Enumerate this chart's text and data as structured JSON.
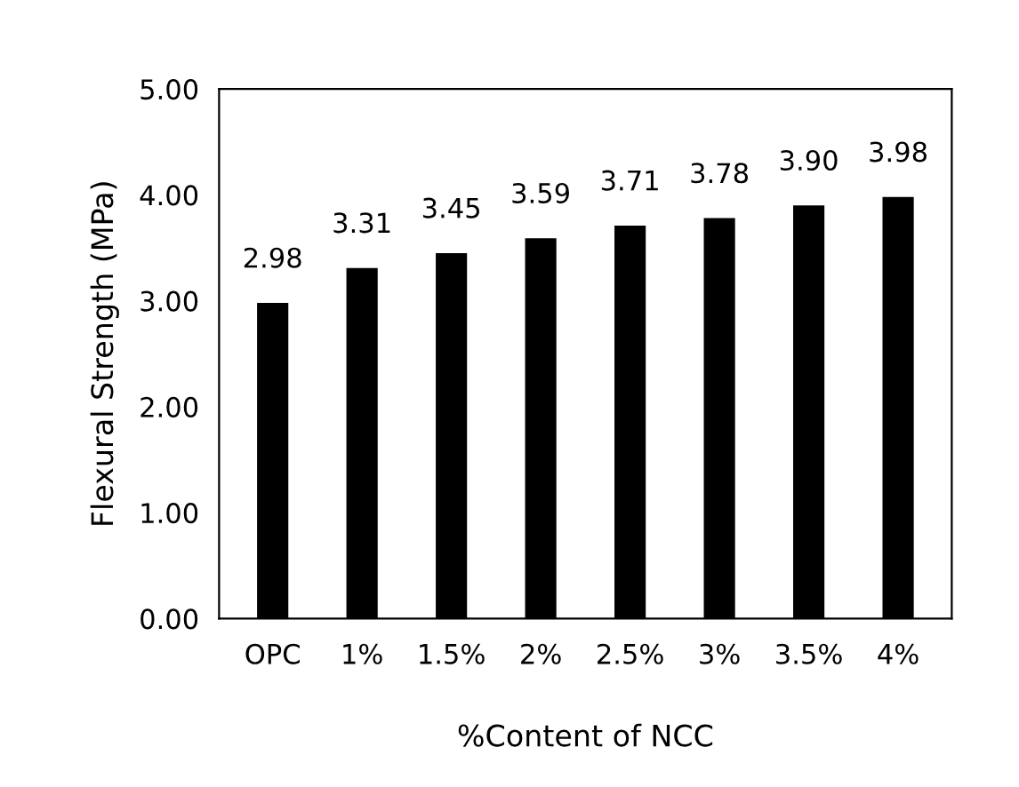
{
  "chart_data": {
    "type": "bar",
    "xlabel": "%Content of NCC",
    "ylabel": "Flexural Strength (MPa)",
    "categories": [
      "OPC",
      "1%",
      "1.5%",
      "2%",
      "2.5%",
      "3%",
      "3.5%",
      "4%"
    ],
    "values": [
      2.98,
      3.31,
      3.45,
      3.59,
      3.71,
      3.78,
      3.9,
      3.98
    ],
    "value_labels": [
      "2.98",
      "3.31",
      "3.45",
      "3.59",
      "3.71",
      "3.78",
      "3.90",
      "3.98"
    ],
    "color": "#000000",
    "ylim": [
      0,
      5
    ],
    "yticks": [
      {
        "value": 0,
        "label": "0.00"
      },
      {
        "value": 1,
        "label": "1.00"
      },
      {
        "value": 2,
        "label": "2.00"
      },
      {
        "value": 3,
        "label": "3.00"
      },
      {
        "value": 4,
        "label": "4.00"
      },
      {
        "value": 5,
        "label": "5.00"
      }
    ],
    "grid": false
  }
}
